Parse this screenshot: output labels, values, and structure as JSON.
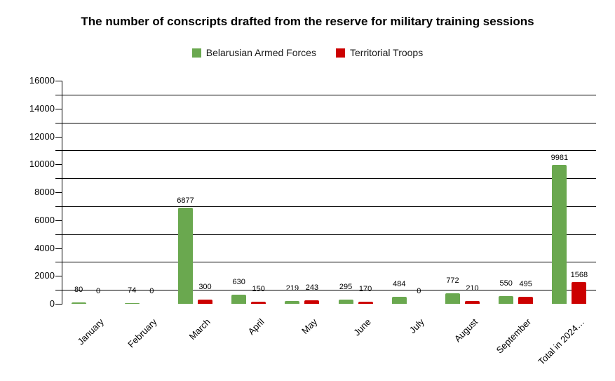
{
  "title": "The number of conscripts drafted from the reserve for military training sessions",
  "legend": [
    {
      "label": "Belarusian Armed Forces",
      "color": "#6aa84f"
    },
    {
      "label": "Territorial Troops",
      "color": "#cc0000"
    }
  ],
  "chart_data": {
    "type": "bar",
    "title": "The number of conscripts drafted from the reserve for military training sessions",
    "categories": [
      "January",
      "February",
      "March",
      "April",
      "May",
      "June",
      "July",
      "August",
      "September",
      "Total in 2024…"
    ],
    "series": [
      {
        "name": "Belarusian Armed Forces",
        "color": "#6aa84f",
        "values": [
          80,
          74,
          6877,
          630,
          219,
          295,
          484,
          772,
          550,
          9981
        ]
      },
      {
        "name": "Territorial Troops",
        "color": "#cc0000",
        "values": [
          0,
          0,
          300,
          150,
          243,
          170,
          0,
          210,
          495,
          1568
        ]
      }
    ],
    "xlabel": "",
    "ylabel": "",
    "ylim": [
      0,
      16000
    ],
    "y_ticks": [
      0,
      2000,
      4000,
      6000,
      8000,
      10000,
      12000,
      14000,
      16000
    ],
    "grid": "horizontal",
    "legend_position": "top",
    "data_labels": true
  }
}
